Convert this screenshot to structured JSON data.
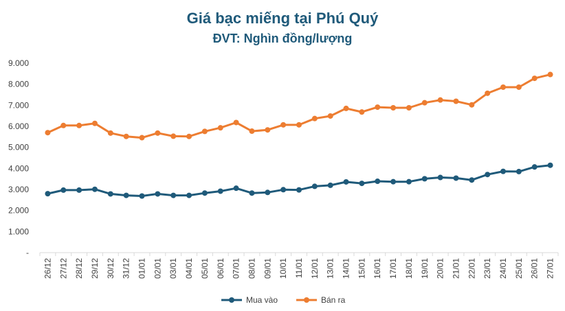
{
  "chart_data": {
    "type": "line",
    "title": "Giá bạc miếng tại Phú Quý",
    "subtitle": "ĐVT: Nghìn đồng/lượng",
    "categories": [
      "26/12",
      "27/12",
      "28/12",
      "29/12",
      "30/12",
      "31/12",
      "01/01",
      "02/01",
      "03/01",
      "04/01",
      "05/01",
      "06/01",
      "07/01",
      "08/01",
      "09/01",
      "10/01",
      "11/01",
      "12/01",
      "13/01",
      "14/01",
      "15/01",
      "16/01",
      "17/01",
      "18/01",
      "19/01",
      "20/01",
      "21/01",
      "22/01",
      "23/01",
      "24/01",
      "25/01",
      "26/01",
      "27/01"
    ],
    "series": [
      {
        "name": "Mua vào",
        "color": "#1f5a7a",
        "values": [
          2800,
          2970,
          2970,
          3010,
          2790,
          2720,
          2690,
          2790,
          2720,
          2720,
          2830,
          2920,
          3060,
          2830,
          2860,
          2990,
          2980,
          3150,
          3200,
          3360,
          3290,
          3390,
          3370,
          3370,
          3510,
          3570,
          3540,
          3450,
          3710,
          3860,
          3850,
          4070,
          4150
        ]
      },
      {
        "name": "Bán ra",
        "color": "#ed7d31",
        "values": [
          5700,
          6040,
          6040,
          6140,
          5680,
          5520,
          5460,
          5680,
          5530,
          5520,
          5760,
          5930,
          6180,
          5770,
          5830,
          6070,
          6070,
          6370,
          6490,
          6850,
          6680,
          6910,
          6880,
          6880,
          7120,
          7250,
          7190,
          7020,
          7570,
          7860,
          7860,
          8280,
          8460
        ]
      }
    ],
    "yticks": [
      "-",
      "1.000",
      "2.000",
      "3.000",
      "4.000",
      "5.000",
      "6.000",
      "7.000",
      "8.000",
      "9.000"
    ],
    "ylim": [
      0,
      9000
    ],
    "grid": false,
    "legend": "bottom"
  }
}
